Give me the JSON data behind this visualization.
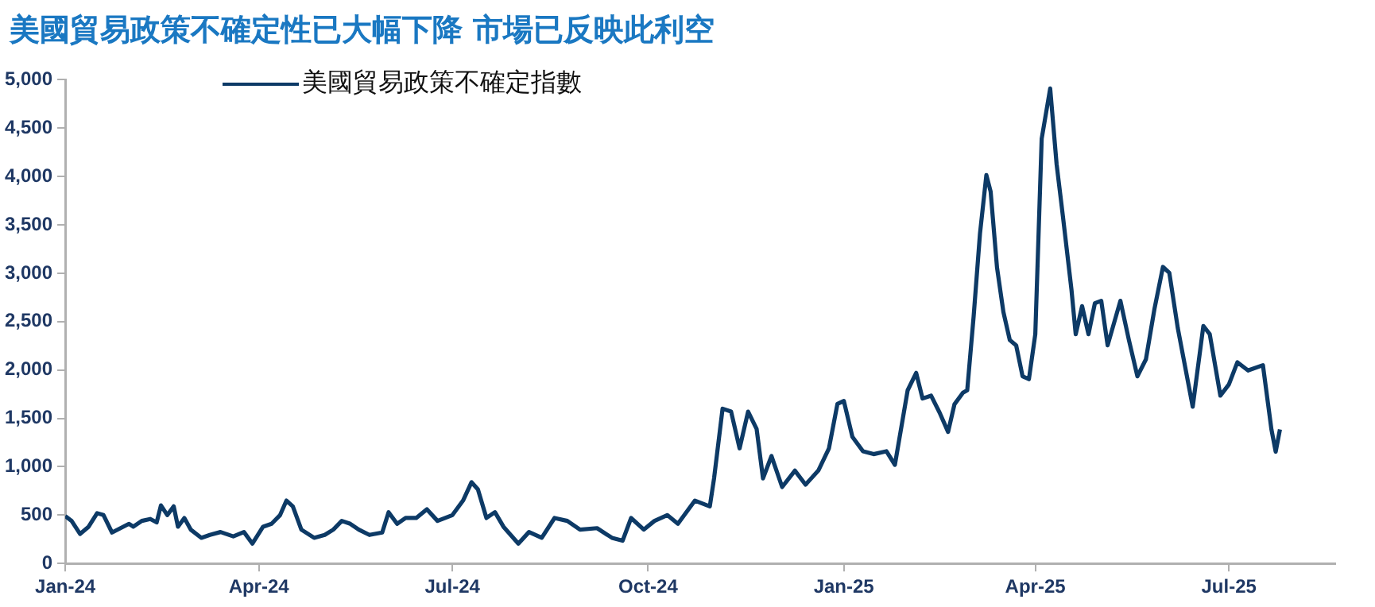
{
  "chart_data": {
    "type": "line",
    "title": "美國貿易政策不確定性已大幅下降 市場已反映此利空",
    "x": [
      "2024-01-01",
      "2024-01-04",
      "2024-01-08",
      "2024-01-12",
      "2024-01-16",
      "2024-01-19",
      "2024-01-23",
      "2024-01-27",
      "2024-01-31",
      "2024-02-02",
      "2024-02-06",
      "2024-02-10",
      "2024-02-13",
      "2024-02-15",
      "2024-02-18",
      "2024-02-21",
      "2024-02-23",
      "2024-02-26",
      "2024-02-29",
      "2024-03-05",
      "2024-03-09",
      "2024-03-14",
      "2024-03-20",
      "2024-03-25",
      "2024-03-29",
      "2024-04-03",
      "2024-04-07",
      "2024-04-11",
      "2024-04-14",
      "2024-04-17",
      "2024-04-21",
      "2024-04-27",
      "2024-05-02",
      "2024-05-06",
      "2024-05-10",
      "2024-05-14",
      "2024-05-18",
      "2024-05-23",
      "2024-05-29",
      "2024-06-01",
      "2024-06-05",
      "2024-06-09",
      "2024-06-14",
      "2024-06-19",
      "2024-06-24",
      "2024-07-01",
      "2024-07-06",
      "2024-07-10",
      "2024-07-13",
      "2024-07-17",
      "2024-07-21",
      "2024-07-25",
      "2024-08-01",
      "2024-08-06",
      "2024-08-12",
      "2024-08-18",
      "2024-08-24",
      "2024-08-30",
      "2024-09-07",
      "2024-09-14",
      "2024-09-19",
      "2024-09-23",
      "2024-09-29",
      "2024-10-04",
      "2024-10-10",
      "2024-10-15",
      "2024-10-23",
      "2024-10-30",
      "2024-11-01",
      "2024-11-05",
      "2024-11-09",
      "2024-11-13",
      "2024-11-17",
      "2024-11-21",
      "2024-11-24",
      "2024-11-28",
      "2024-12-03",
      "2024-12-09",
      "2024-12-14",
      "2024-12-20",
      "2024-12-25",
      "2024-12-29",
      "2025-01-01",
      "2025-01-05",
      "2025-01-10",
      "2025-01-15",
      "2025-01-21",
      "2025-01-25",
      "2025-01-31",
      "2025-02-04",
      "2025-02-07",
      "2025-02-11",
      "2025-02-15",
      "2025-02-19",
      "2025-02-22",
      "2025-02-26",
      "2025-02-28",
      "2025-03-03",
      "2025-03-06",
      "2025-03-09",
      "2025-03-11",
      "2025-03-14",
      "2025-03-17",
      "2025-03-20",
      "2025-03-23",
      "2025-03-26",
      "2025-03-29",
      "2025-04-01",
      "2025-04-04",
      "2025-04-08",
      "2025-04-11",
      "2025-04-14",
      "2025-04-18",
      "2025-04-20",
      "2025-04-23",
      "2025-04-26",
      "2025-04-29",
      "2025-05-02",
      "2025-05-05",
      "2025-05-11",
      "2025-05-15",
      "2025-05-19",
      "2025-05-23",
      "2025-05-27",
      "2025-05-31",
      "2025-06-03",
      "2025-06-07",
      "2025-06-14",
      "2025-06-19",
      "2025-06-22",
      "2025-06-27",
      "2025-07-01",
      "2025-07-05",
      "2025-07-10",
      "2025-07-17",
      "2025-07-21",
      "2025-07-23",
      "2025-07-25"
    ],
    "series": [
      {
        "name": "美國貿易政策不確定指數",
        "color": "#0d3a66",
        "values": [
          490,
          440,
          305,
          380,
          520,
          500,
          320,
          365,
          410,
          380,
          440,
          460,
          425,
          600,
          500,
          590,
          380,
          470,
          350,
          265,
          295,
          325,
          280,
          325,
          205,
          380,
          410,
          500,
          650,
          590,
          350,
          265,
          295,
          350,
          440,
          410,
          350,
          295,
          320,
          530,
          410,
          470,
          470,
          560,
          440,
          500,
          650,
          840,
          765,
          470,
          530,
          380,
          205,
          325,
          265,
          470,
          440,
          350,
          365,
          265,
          235,
          470,
          350,
          440,
          500,
          410,
          650,
          590,
          880,
          1600,
          1570,
          1190,
          1570,
          1390,
          880,
          1110,
          790,
          960,
          815,
          960,
          1190,
          1650,
          1680,
          1310,
          1160,
          1130,
          1160,
          1020,
          1790,
          1970,
          1705,
          1735,
          1560,
          1360,
          1645,
          1765,
          1790,
          2550,
          3410,
          4015,
          3845,
          3060,
          2600,
          2310,
          2255,
          1935,
          1905,
          2370,
          4390,
          4910,
          4130,
          3585,
          2830,
          2370,
          2660,
          2370,
          2690,
          2715,
          2255,
          2715,
          2310,
          1935,
          2110,
          2630,
          3065,
          3005,
          2430,
          1620,
          2455,
          2370,
          1735,
          1850,
          2080,
          1995,
          2050,
          1385,
          1155,
          1385
        ]
      }
    ],
    "xlim": [
      "2024-01-01",
      "2025-08-20"
    ],
    "xticks": [
      {
        "value": "2024-01-01",
        "label": "Jan-24"
      },
      {
        "value": "2024-04-01",
        "label": "Apr-24"
      },
      {
        "value": "2024-07-01",
        "label": "Jul-24"
      },
      {
        "value": "2024-10-01",
        "label": "Oct-24"
      },
      {
        "value": "2025-01-01",
        "label": "Jan-25"
      },
      {
        "value": "2025-04-01",
        "label": "Apr-25"
      },
      {
        "value": "2025-07-01",
        "label": "Jul-25"
      }
    ],
    "ylim": [
      0,
      5000
    ],
    "yticks": [
      {
        "value": 0,
        "label": "0"
      },
      {
        "value": 500,
        "label": "500"
      },
      {
        "value": 1000,
        "label": "1,000"
      },
      {
        "value": 1500,
        "label": "1,500"
      },
      {
        "value": 2000,
        "label": "2,000"
      },
      {
        "value": 2500,
        "label": "2,500"
      },
      {
        "value": 3000,
        "label": "3,000"
      },
      {
        "value": 3500,
        "label": "3,500"
      },
      {
        "value": 4000,
        "label": "4,000"
      },
      {
        "value": 4500,
        "label": "4,500"
      },
      {
        "value": 5000,
        "label": "5,000"
      }
    ],
    "grid": false,
    "legend": "top left",
    "marker": "none",
    "line_style": "solid"
  }
}
